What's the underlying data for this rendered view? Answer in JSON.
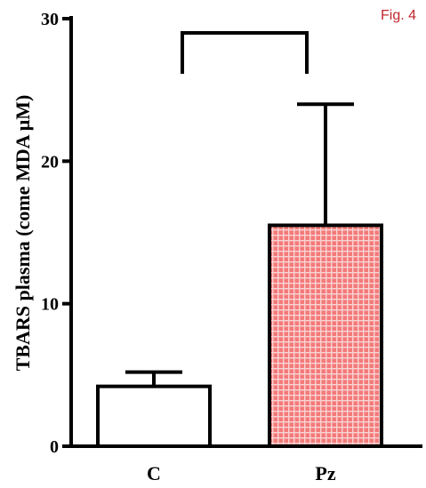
{
  "chart_data": {
    "type": "bar",
    "categories": [
      "C",
      "Pz"
    ],
    "values": [
      4.2,
      15.5
    ],
    "error_plus": [
      1.0,
      8.5
    ],
    "ylabel": "TBARS plasma (come MDA μM)",
    "ylim": [
      0,
      30
    ],
    "yticks": [
      "0",
      "10",
      "20",
      "30"
    ],
    "grid": false,
    "significance_bracket": {
      "from": "C",
      "to": "Pz",
      "value": 29
    },
    "bar_styles": [
      {
        "fill": "#ffffff",
        "pattern": "none"
      },
      {
        "fill": "#f47a7a",
        "pattern": "grid"
      }
    ]
  },
  "figure_label": "Fig. 4",
  "colors": {
    "figure_label": "#c0272d",
    "axis": "#000000",
    "pattern_line": "#fbd3d3"
  }
}
